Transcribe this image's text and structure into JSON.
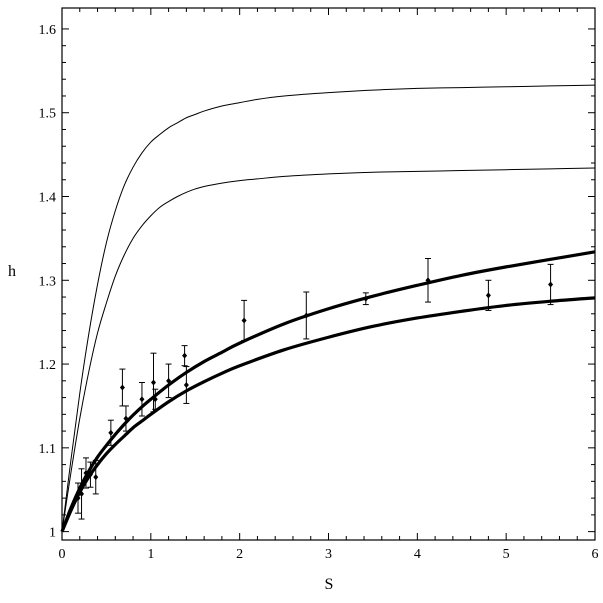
{
  "chart_data": {
    "type": "line",
    "xlabel": "S",
    "ylabel": "h",
    "xlim": [
      0,
      6
    ],
    "ylim": [
      0.99,
      1.625
    ],
    "grid": false,
    "x_ticks": [
      0,
      1,
      2,
      3,
      4,
      5,
      6
    ],
    "y_ticks": [
      1,
      1.1,
      1.2,
      1.3,
      1.4,
      1.5,
      1.6
    ],
    "y_tick_labels": [
      "1",
      "1.1",
      "1.2",
      "1.3",
      "1.4",
      "1.5",
      "1.6"
    ],
    "series": [
      {
        "style": "thin",
        "x": [
          0,
          0.1,
          0.2,
          0.3,
          0.4,
          0.5,
          0.6,
          0.7,
          0.8,
          0.9,
          1.0,
          1.1,
          1.2,
          1.3,
          1.4,
          1.5,
          1.6,
          1.8,
          2.0,
          2.2,
          2.5,
          3.0,
          3.5,
          4.0,
          4.5,
          5.0,
          5.5,
          6.0
        ],
        "y": [
          1.0,
          1.085,
          1.165,
          1.235,
          1.295,
          1.345,
          1.383,
          1.413,
          1.435,
          1.452,
          1.465,
          1.474,
          1.482,
          1.488,
          1.494,
          1.498,
          1.502,
          1.508,
          1.512,
          1.516,
          1.52,
          1.524,
          1.527,
          1.529,
          1.53,
          1.531,
          1.532,
          1.533
        ]
      },
      {
        "style": "thin",
        "x": [
          0,
          0.1,
          0.2,
          0.3,
          0.4,
          0.5,
          0.6,
          0.7,
          0.8,
          0.9,
          1.0,
          1.1,
          1.2,
          1.3,
          1.4,
          1.5,
          1.6,
          1.8,
          2.0,
          2.2,
          2.5,
          3.0,
          3.5,
          4.0,
          4.5,
          5.0,
          5.5,
          6.0
        ],
        "y": [
          1.0,
          1.07,
          1.135,
          1.19,
          1.237,
          1.273,
          1.305,
          1.33,
          1.35,
          1.365,
          1.377,
          1.387,
          1.394,
          1.4,
          1.405,
          1.409,
          1.412,
          1.416,
          1.419,
          1.421,
          1.424,
          1.427,
          1.429,
          1.43,
          1.431,
          1.432,
          1.433,
          1.434
        ]
      },
      {
        "style": "thick",
        "x": [
          0,
          0.1,
          0.2,
          0.3,
          0.4,
          0.5,
          0.6,
          0.7,
          0.8,
          0.9,
          1.0,
          1.2,
          1.4,
          1.6,
          1.8,
          2.0,
          2.5,
          3.0,
          3.5,
          4.0,
          4.5,
          5.0,
          5.5,
          6.0
        ],
        "y": [
          1.0,
          1.028,
          1.052,
          1.072,
          1.089,
          1.103,
          1.116,
          1.128,
          1.139,
          1.149,
          1.158,
          1.175,
          1.19,
          1.203,
          1.214,
          1.225,
          1.248,
          1.266,
          1.281,
          1.294,
          1.306,
          1.316,
          1.325,
          1.334
        ]
      },
      {
        "style": "thick",
        "x": [
          0,
          0.1,
          0.2,
          0.3,
          0.4,
          0.5,
          0.6,
          0.7,
          0.8,
          0.9,
          1.0,
          1.2,
          1.4,
          1.6,
          1.8,
          2.0,
          2.5,
          3.0,
          3.5,
          4.0,
          4.5,
          5.0,
          5.5,
          6.0
        ],
        "y": [
          1.0,
          1.025,
          1.047,
          1.065,
          1.08,
          1.093,
          1.104,
          1.114,
          1.124,
          1.132,
          1.14,
          1.155,
          1.168,
          1.179,
          1.189,
          1.198,
          1.217,
          1.232,
          1.245,
          1.255,
          1.263,
          1.27,
          1.275,
          1.279
        ]
      }
    ],
    "points": [
      {
        "x": 0.18,
        "y": 1.04,
        "err": 0.018
      },
      {
        "x": 0.22,
        "y": 1.045,
        "err": 0.03
      },
      {
        "x": 0.27,
        "y": 1.07,
        "err": 0.018
      },
      {
        "x": 0.32,
        "y": 1.068,
        "err": 0.015
      },
      {
        "x": 0.38,
        "y": 1.065,
        "err": 0.02
      },
      {
        "x": 0.55,
        "y": 1.118,
        "err": 0.015
      },
      {
        "x": 0.68,
        "y": 1.172,
        "err": 0.022
      },
      {
        "x": 0.72,
        "y": 1.135,
        "err": 0.015
      },
      {
        "x": 0.9,
        "y": 1.158,
        "err": 0.02
      },
      {
        "x": 1.03,
        "y": 1.178,
        "err": 0.035
      },
      {
        "x": 1.05,
        "y": 1.158,
        "err": 0.012
      },
      {
        "x": 1.2,
        "y": 1.18,
        "err": 0.02
      },
      {
        "x": 1.38,
        "y": 1.21,
        "err": 0.012
      },
      {
        "x": 1.4,
        "y": 1.175,
        "err": 0.022
      },
      {
        "x": 2.05,
        "y": 1.252,
        "err": 0.024
      },
      {
        "x": 2.75,
        "y": 1.258,
        "err": 0.028
      },
      {
        "x": 3.42,
        "y": 1.278,
        "err": 0.007
      },
      {
        "x": 4.12,
        "y": 1.3,
        "err": 0.026
      },
      {
        "x": 4.8,
        "y": 1.282,
        "err": 0.018
      },
      {
        "x": 5.5,
        "y": 1.295,
        "err": 0.024
      }
    ]
  }
}
